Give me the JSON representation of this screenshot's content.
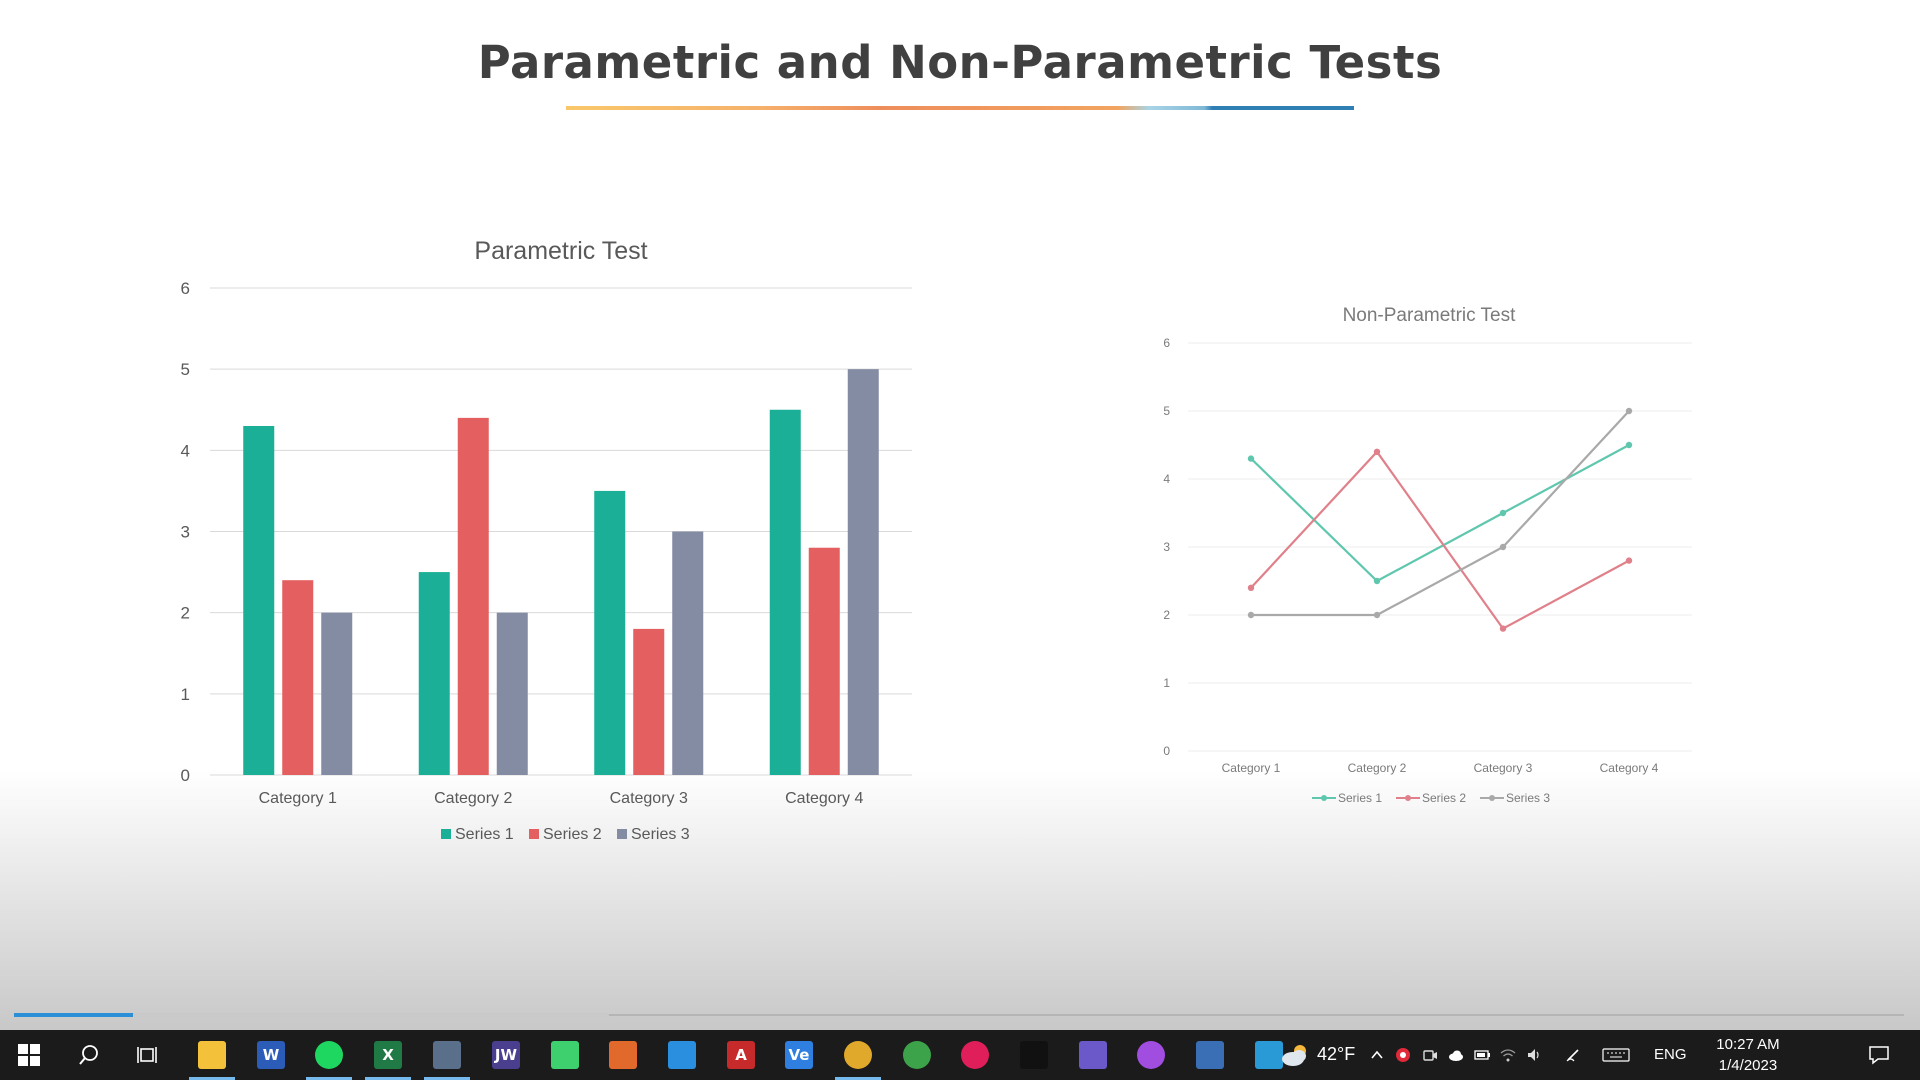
{
  "slide": {
    "title": "Parametric and Non-Parametric Tests"
  },
  "progress": {
    "value": 0.2
  },
  "chart_data": [
    {
      "type": "bar",
      "title": "Parametric Test",
      "categories": [
        "Category 1",
        "Category 2",
        "Category 3",
        "Category 4"
      ],
      "series": [
        {
          "name": "Series 1",
          "values": [
            4.3,
            2.5,
            3.5,
            4.5
          ],
          "color": "#1aaf96"
        },
        {
          "name": "Series 2",
          "values": [
            2.4,
            4.4,
            1.8,
            2.8
          ],
          "color": "#e45f5f"
        },
        {
          "name": "Series 3",
          "values": [
            2,
            2,
            3,
            5
          ],
          "color": "#838ca3"
        }
      ],
      "ylim": [
        0,
        6
      ],
      "yticks": [
        "0",
        "1",
        "2",
        "3",
        "4",
        "5",
        "6"
      ],
      "grid": true,
      "legend": "bottom"
    },
    {
      "type": "line",
      "title": "Non-Parametric Test",
      "categories": [
        "Category 1",
        "Category 2",
        "Category 3",
        "Category 4"
      ],
      "series": [
        {
          "name": "Series 1",
          "values": [
            4.3,
            2.5,
            3.5,
            4.5
          ],
          "color": "#5fc7ae"
        },
        {
          "name": "Series 2",
          "values": [
            2.4,
            4.4,
            1.8,
            2.8
          ],
          "color": "#e0808a"
        },
        {
          "name": "Series 3",
          "values": [
            2,
            2,
            3,
            5
          ],
          "color": "#a9a9a9"
        }
      ],
      "ylim": [
        0,
        6
      ],
      "yticks": [
        "0",
        "1",
        "2",
        "3",
        "4",
        "5",
        "6"
      ],
      "grid": true,
      "legend": "bottom"
    }
  ],
  "taskbar": {
    "apps": [
      {
        "name": "start",
        "icon": "windows-icon",
        "label": "",
        "color": "#ffffff",
        "active": false
      },
      {
        "name": "search",
        "icon": "search-icon",
        "label": "",
        "color": "#ffffff",
        "active": false
      },
      {
        "name": "task-view",
        "icon": "task-view-icon",
        "label": "",
        "color": "#ffffff",
        "active": false
      },
      {
        "name": "file-explorer",
        "icon": "folder-icon",
        "label": "",
        "color": "#f3c13a",
        "active": true
      },
      {
        "name": "word",
        "icon": "word-icon",
        "label": "W",
        "color": "#2b5cb8",
        "active": false
      },
      {
        "name": "spotify",
        "icon": "spotify-icon",
        "label": "",
        "color": "#1ed760",
        "active": true
      },
      {
        "name": "excel",
        "icon": "excel-icon",
        "label": "X",
        "color": "#1f7a45",
        "active": true
      },
      {
        "name": "calculator",
        "icon": "calculator-icon",
        "label": "",
        "color": "#5a6f8a",
        "active": true
      },
      {
        "name": "jw",
        "icon": "jw-icon",
        "label": "JW",
        "color": "#4a3f8f",
        "active": false
      },
      {
        "name": "app-green",
        "icon": "gem-icon",
        "label": "",
        "color": "#3ecf6f",
        "active": false
      },
      {
        "name": "matlab",
        "icon": "matlab-icon",
        "label": "",
        "color": "#e0692b",
        "active": false
      },
      {
        "name": "vscode",
        "icon": "vscode-icon",
        "label": "",
        "color": "#2b8fe0",
        "active": false
      },
      {
        "name": "acrobat",
        "icon": "acrobat-icon",
        "label": "A",
        "color": "#c62a2a",
        "active": false
      },
      {
        "name": "app-ve",
        "icon": "ve-icon",
        "label": "Ve",
        "color": "#2f7fe0",
        "active": false
      },
      {
        "name": "chrome",
        "icon": "chrome-icon",
        "label": "",
        "color": "#e0a92b",
        "active": true
      },
      {
        "name": "chrome-profile",
        "icon": "chrome-profile-icon",
        "label": "",
        "color": "#3da34a",
        "active": false
      },
      {
        "name": "slack",
        "icon": "slack-icon",
        "label": "",
        "color": "#e01e5a",
        "active": false
      },
      {
        "name": "terminal",
        "icon": "terminal-icon",
        "label": "",
        "color": "#111111",
        "active": false
      },
      {
        "name": "app-tool",
        "icon": "tool-icon",
        "label": "",
        "color": "#6b58c9",
        "active": false
      },
      {
        "name": "app-drop",
        "icon": "drop-icon",
        "label": "",
        "color": "#a04de0",
        "active": false
      },
      {
        "name": "virtualbox",
        "icon": "virtualbox-icon",
        "label": "",
        "color": "#3a6fb5",
        "active": false
      },
      {
        "name": "app-k",
        "icon": "k-icon",
        "label": "",
        "color": "#2a9ad6",
        "active": false
      }
    ],
    "weather": {
      "temp": "42°F",
      "icon": "cloud-sun-icon"
    },
    "tray_icons": [
      "chevron-up-icon",
      "antivirus-icon",
      "meet-icon",
      "onedrive-icon",
      "battery-icon",
      "wifi-icon",
      "volume-icon",
      "pen-icon",
      "keyboard-icon"
    ],
    "language": "ENG",
    "time": "10:27 AM",
    "date": "1/4/2023",
    "notification_icon": "notification-icon"
  }
}
